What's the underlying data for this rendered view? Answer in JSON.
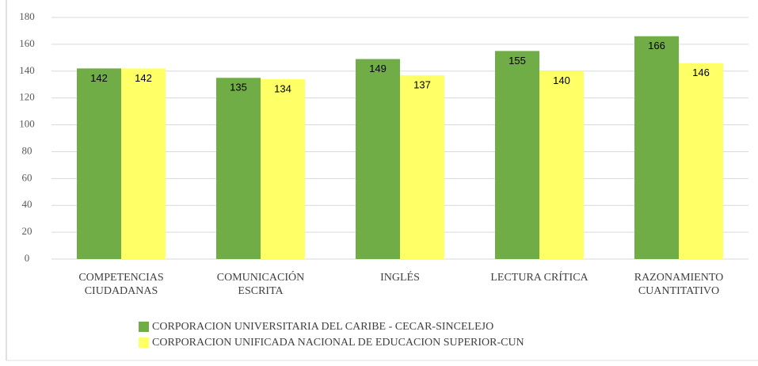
{
  "chart_data": {
    "type": "bar",
    "categories": [
      "COMPETENCIAS CIUDADANAS",
      "COMUNICACIÓN ESCRITA",
      "INGLÉS",
      "LECTURA CRÍTICA",
      "RAZONAMIENTO CUANTITATIVO"
    ],
    "series": [
      {
        "name": "CORPORACION UNIVERSITARIA DEL CARIBE - CECAR-SINCELEJO",
        "color": "#70ad47",
        "values": [
          142,
          135,
          149,
          155,
          166
        ]
      },
      {
        "name": "CORPORACION UNIFICADA NACIONAL DE EDUCACION SUPERIOR-CUN",
        "color": "#ffff66",
        "values": [
          142,
          134,
          137,
          140,
          146
        ]
      }
    ],
    "ylim": [
      0,
      180
    ],
    "yticks": [
      0,
      20,
      40,
      60,
      80,
      100,
      120,
      140,
      160,
      180
    ],
    "grid": true,
    "legend": "bottom"
  }
}
